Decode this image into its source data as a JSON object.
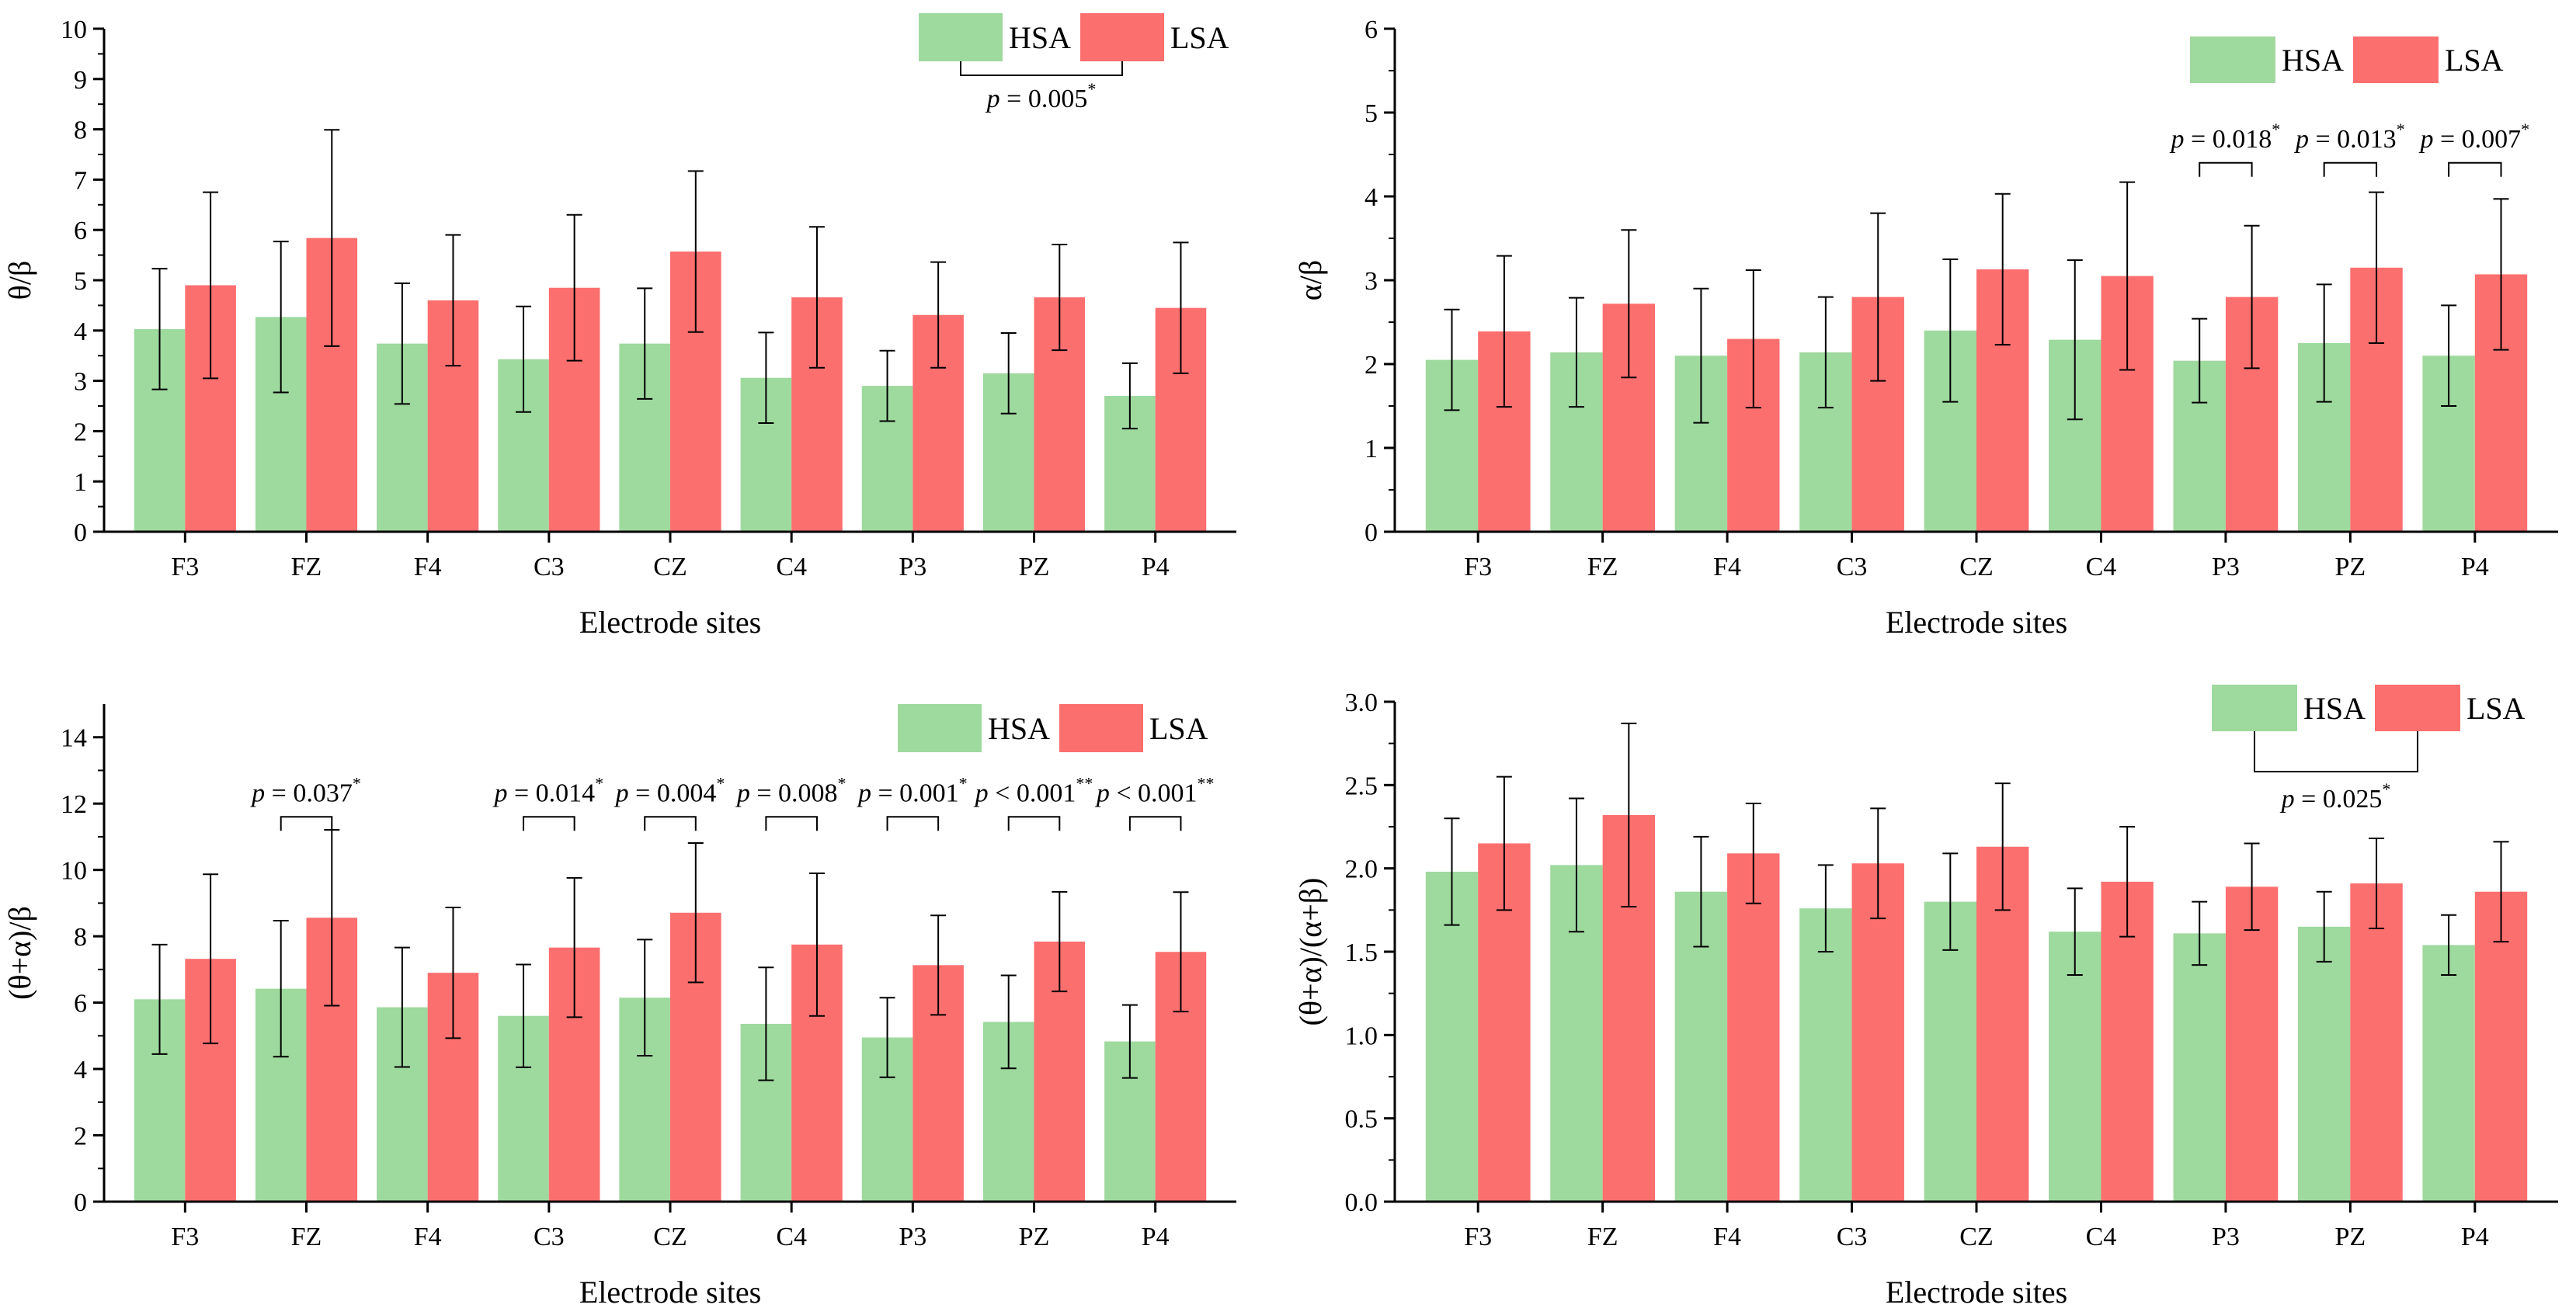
{
  "colors": {
    "hsa": "#9ed99e",
    "lsa": "#fc6f6f",
    "axis": "#000000",
    "errorbar": "#000000"
  },
  "legend": {
    "hsa": "HSA",
    "lsa": "LSA"
  },
  "chart_data": [
    {
      "type": "bar",
      "title": "",
      "xlabel": "Electrode sites",
      "ylabel": "θ/β",
      "ylim": [
        0,
        10
      ],
      "yticks": [
        0,
        1,
        2,
        3,
        4,
        5,
        6,
        7,
        8,
        9,
        10
      ],
      "ytick_labels": [
        "0",
        "1",
        "2",
        "3",
        "4",
        "5",
        "6",
        "7",
        "8",
        "9",
        "10"
      ],
      "categories": [
        "F3",
        "FZ",
        "F4",
        "C3",
        "CZ",
        "C4",
        "P3",
        "PZ",
        "P4"
      ],
      "series": [
        {
          "name": "HSA",
          "values": [
            4.03,
            4.27,
            3.74,
            3.43,
            3.74,
            3.06,
            2.9,
            3.15,
            2.7
          ],
          "errors": [
            1.2,
            1.5,
            1.2,
            1.05,
            1.1,
            0.9,
            0.7,
            0.8,
            0.65
          ]
        },
        {
          "name": "LSA",
          "values": [
            4.9,
            5.84,
            4.6,
            4.85,
            5.57,
            4.66,
            4.31,
            4.66,
            4.45
          ],
          "errors": [
            1.85,
            2.15,
            1.3,
            1.45,
            1.6,
            1.4,
            1.05,
            1.05,
            1.3
          ]
        }
      ],
      "significance": [
        {
          "type": "legend",
          "label": "p = 0.005",
          "stars": "*"
        }
      ]
    },
    {
      "type": "bar",
      "title": "",
      "xlabel": "Electrode sites",
      "ylabel": "α/β",
      "ylim": [
        0,
        6
      ],
      "yticks": [
        0,
        1,
        2,
        3,
        4,
        5,
        6
      ],
      "ytick_labels": [
        "0",
        "1",
        "2",
        "3",
        "4",
        "5",
        "6"
      ],
      "categories": [
        "F3",
        "FZ",
        "F4",
        "C3",
        "CZ",
        "C4",
        "P3",
        "PZ",
        "P4"
      ],
      "series": [
        {
          "name": "HSA",
          "values": [
            2.05,
            2.14,
            2.1,
            2.14,
            2.4,
            2.29,
            2.04,
            2.25,
            2.1
          ],
          "errors": [
            0.6,
            0.65,
            0.8,
            0.66,
            0.85,
            0.95,
            0.5,
            0.7,
            0.6
          ]
        },
        {
          "name": "LSA",
          "values": [
            2.39,
            2.72,
            2.3,
            2.8,
            3.13,
            3.05,
            2.8,
            3.15,
            3.07
          ],
          "errors": [
            0.9,
            0.88,
            0.82,
            1.0,
            0.9,
            1.12,
            0.85,
            0.9,
            0.9
          ]
        }
      ],
      "significance": [
        {
          "type": "bar",
          "index": 6,
          "value": 4.4,
          "label": "p = 0.018",
          "stars": "*"
        },
        {
          "type": "bar",
          "index": 7,
          "value": 4.4,
          "label": "p = 0.013",
          "stars": "*"
        },
        {
          "type": "bar",
          "index": 8,
          "value": 4.4,
          "label": "p = 0.007",
          "stars": "*"
        }
      ]
    },
    {
      "type": "bar",
      "title": "",
      "xlabel": "Electrode sites",
      "ylabel": "(θ+α)/β",
      "ylim": [
        0,
        15
      ],
      "yticks": [
        0,
        2,
        4,
        6,
        8,
        10,
        12,
        14
      ],
      "ytick_labels": [
        "0",
        "2",
        "4",
        "6",
        "8",
        "10",
        "12",
        "14"
      ],
      "categories": [
        "F3",
        "FZ",
        "F4",
        "C3",
        "CZ",
        "C4",
        "P3",
        "PZ",
        "P4"
      ],
      "series": [
        {
          "name": "HSA",
          "values": [
            6.1,
            6.42,
            5.86,
            5.6,
            6.15,
            5.36,
            4.95,
            5.42,
            4.83
          ],
          "errors": [
            1.65,
            2.05,
            1.8,
            1.55,
            1.75,
            1.7,
            1.2,
            1.4,
            1.1
          ]
        },
        {
          "name": "LSA",
          "values": [
            7.32,
            8.56,
            6.9,
            7.66,
            8.71,
            7.75,
            7.13,
            7.84,
            7.53
          ],
          "errors": [
            2.55,
            2.65,
            1.97,
            2.1,
            2.1,
            2.15,
            1.5,
            1.5,
            1.8
          ]
        }
      ],
      "significance": [
        {
          "type": "bar",
          "index": 1,
          "value": 11.6,
          "label": "p = 0.037",
          "stars": "*"
        },
        {
          "type": "bar",
          "index": 3,
          "value": 11.6,
          "label": "p = 0.014",
          "stars": "*"
        },
        {
          "type": "bar",
          "index": 4,
          "value": 11.6,
          "label": "p = 0.004",
          "stars": "*"
        },
        {
          "type": "bar",
          "index": 5,
          "value": 11.6,
          "label": "p = 0.008",
          "stars": "*"
        },
        {
          "type": "bar",
          "index": 6,
          "value": 11.6,
          "label": "p = 0.001",
          "stars": "*"
        },
        {
          "type": "bar",
          "index": 7,
          "value": 11.6,
          "label": "p < 0.001",
          "stars": "**"
        },
        {
          "type": "bar",
          "index": 8,
          "value": 11.6,
          "label": "p < 0.001",
          "stars": "**"
        }
      ]
    },
    {
      "type": "bar",
      "title": "",
      "xlabel": "Electrode sites",
      "ylabel": "(θ+α)/(α+β)",
      "ylim": [
        0,
        3
      ],
      "yticks": [
        0,
        0.5,
        1,
        1.5,
        2,
        2.5,
        3
      ],
      "ytick_labels": [
        "0.0",
        "0.5",
        "1.0",
        "1.5",
        "2.0",
        "2.5",
        "3.0"
      ],
      "categories": [
        "F3",
        "FZ",
        "F4",
        "C3",
        "CZ",
        "C4",
        "P3",
        "PZ",
        "P4"
      ],
      "series": [
        {
          "name": "HSA",
          "values": [
            1.98,
            2.02,
            1.86,
            1.76,
            1.8,
            1.62,
            1.61,
            1.65,
            1.54
          ],
          "errors": [
            0.32,
            0.4,
            0.33,
            0.26,
            0.29,
            0.26,
            0.19,
            0.21,
            0.18
          ]
        },
        {
          "name": "LSA",
          "values": [
            2.15,
            2.32,
            2.09,
            2.03,
            2.13,
            1.92,
            1.89,
            1.91,
            1.86
          ],
          "errors": [
            0.4,
            0.55,
            0.3,
            0.33,
            0.38,
            0.33,
            0.26,
            0.27,
            0.3
          ]
        }
      ],
      "significance": [
        {
          "type": "legend",
          "label": "p = 0.025",
          "stars": "*"
        }
      ]
    }
  ]
}
